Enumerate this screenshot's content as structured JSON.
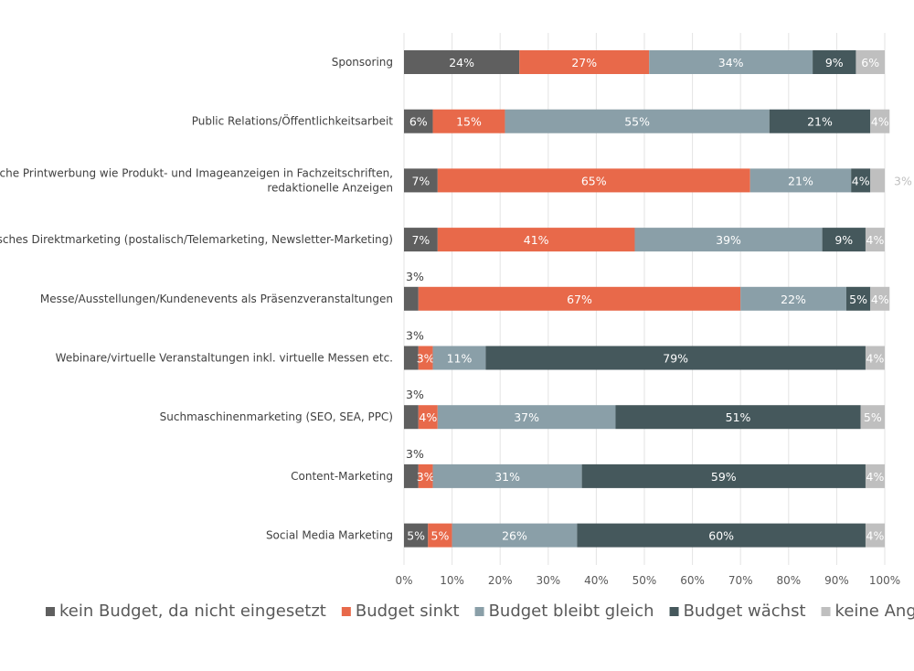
{
  "chart_data": {
    "type": "bar",
    "orientation": "horizontal",
    "stacked": true,
    "categories": [
      [
        "Sponsoring"
      ],
      [
        "Public Relations/Öffentlichkeitsarbeit"
      ],
      [
        "Klassische Printwerbung wie Produkt- und Imageanzeigen in Fachzeitschriften,",
        "redaktionelle Anzeigen"
      ],
      [
        "Klassisches Direktmarketing (postalisch/Telemarketing, Newsletter-Marketing)"
      ],
      [
        "Messe/Ausstellungen/Kundenevents als Präsenzveranstaltungen"
      ],
      [
        "Webinare/virtuelle Veranstaltungen inkl. virtuelle Messen etc."
      ],
      [
        "Suchmaschinenmarketing (SEO, SEA, PPC)"
      ],
      [
        "Content-Marketing"
      ],
      [
        "Social Media Marketing"
      ]
    ],
    "series": [
      {
        "name": "kein Budget, da nicht eingesetzt",
        "color": "#5f5f5f",
        "values": [
          24,
          6,
          7,
          7,
          3,
          3,
          3,
          3,
          5
        ]
      },
      {
        "name": "Budget sinkt",
        "color": "#e8694a",
        "values": [
          27,
          15,
          65,
          41,
          67,
          3,
          4,
          3,
          5
        ]
      },
      {
        "name": "Budget bleibt gleich",
        "color": "#8a9fa8",
        "values": [
          34,
          55,
          21,
          39,
          22,
          11,
          37,
          31,
          26
        ]
      },
      {
        "name": "Budget wächst",
        "color": "#45585c",
        "values": [
          9,
          21,
          4,
          9,
          5,
          79,
          51,
          59,
          60
        ]
      },
      {
        "name": "keine Angabe",
        "color": "#bfbfbf",
        "values": [
          6,
          4,
          3,
          4,
          4,
          4,
          5,
          4,
          4
        ]
      }
    ],
    "xlim": [
      0,
      100
    ],
    "x_ticks": [
      "0%",
      "10%",
      "20%",
      "30%",
      "40%",
      "50%",
      "60%",
      "70%",
      "80%",
      "90%",
      "100%"
    ],
    "value_suffix": "%",
    "grid": true,
    "legend_position": "bottom"
  }
}
